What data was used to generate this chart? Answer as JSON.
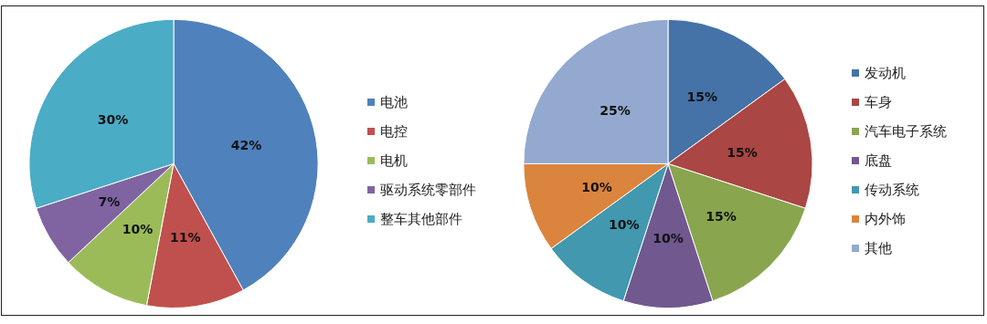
{
  "chart_data": [
    {
      "type": "pie",
      "categories": [
        "电池",
        "电控",
        "电机",
        "驱动系统零部件",
        "整车其他部件"
      ],
      "values": [
        42,
        11,
        10,
        7,
        30
      ],
      "colors": [
        "#4f81bd",
        "#c0504d",
        "#9bbb59",
        "#8064a2",
        "#4bacc6"
      ],
      "value_labels": [
        "42%",
        "11%",
        "10%",
        "7%",
        "30%"
      ],
      "legend": "right"
    },
    {
      "type": "pie",
      "categories": [
        "发动机",
        "车身",
        "汽车电子系统",
        "底盘",
        "传动系统",
        "内外饰",
        "其他"
      ],
      "values": [
        15,
        15,
        15,
        10,
        10,
        10,
        25
      ],
      "colors": [
        "#4572a7",
        "#aa4643",
        "#89a54e",
        "#71588f",
        "#4198af",
        "#db843d",
        "#93a9cf"
      ],
      "value_labels": [
        "15%",
        "15%",
        "15%",
        "10%",
        "10%",
        "10%",
        "25%"
      ],
      "legend": "right"
    }
  ]
}
